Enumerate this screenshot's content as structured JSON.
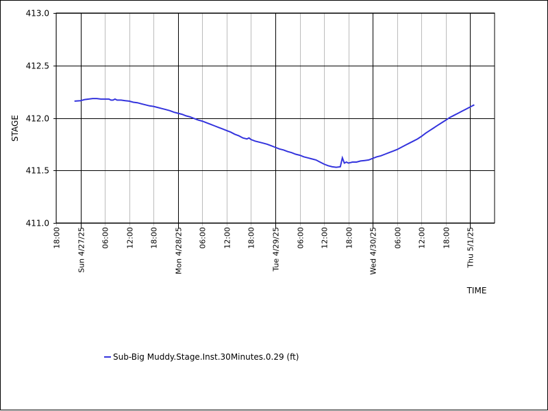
{
  "chart_data": {
    "type": "line",
    "xlabel": "TIME",
    "ylabel": "STAGE",
    "ylim": [
      411.0,
      413.0
    ],
    "y_ticks": [
      "411.0",
      "411.5",
      "412.0",
      "412.5",
      "413.0"
    ],
    "x_range_hours": [
      -6,
      102
    ],
    "x_ticks": [
      {
        "hour": -6,
        "label": "18:00",
        "major": false
      },
      {
        "hour": 0,
        "label": "Sun 4/27/25",
        "major": true
      },
      {
        "hour": 6,
        "label": "06:00",
        "major": false
      },
      {
        "hour": 12,
        "label": "12:00",
        "major": false
      },
      {
        "hour": 18,
        "label": "18:00",
        "major": false
      },
      {
        "hour": 24,
        "label": "Mon 4/28/25",
        "major": true
      },
      {
        "hour": 30,
        "label": "06:00",
        "major": false
      },
      {
        "hour": 36,
        "label": "12:00",
        "major": false
      },
      {
        "hour": 42,
        "label": "18:00",
        "major": false
      },
      {
        "hour": 48,
        "label": "Tue 4/29/25",
        "major": true
      },
      {
        "hour": 54,
        "label": "06:00",
        "major": false
      },
      {
        "hour": 60,
        "label": "12:00",
        "major": false
      },
      {
        "hour": 66,
        "label": "18:00",
        "major": false
      },
      {
        "hour": 72,
        "label": "Wed 4/30/25",
        "major": true
      },
      {
        "hour": 78,
        "label": "06:00",
        "major": false
      },
      {
        "hour": 84,
        "label": "12:00",
        "major": false
      },
      {
        "hour": 90,
        "label": "18:00",
        "major": false
      },
      {
        "hour": 96,
        "label": "Thu 5/1/25",
        "major": true
      }
    ],
    "grid": true,
    "legend_position": "bottom-left",
    "series": [
      {
        "name": "Sub-Big Muddy.Stage.Inst.30Minutes.0.29 (ft)",
        "color": "#3333dd",
        "points": [
          [
            -1.5,
            412.16
          ],
          [
            0,
            412.165
          ],
          [
            1,
            412.175
          ],
          [
            2,
            412.18
          ],
          [
            3,
            412.185
          ],
          [
            4,
            412.185
          ],
          [
            5,
            412.18
          ],
          [
            6,
            412.18
          ],
          [
            7,
            412.18
          ],
          [
            7.5,
            412.17
          ],
          [
            8,
            412.17
          ],
          [
            8.5,
            412.18
          ],
          [
            9,
            412.17
          ],
          [
            10,
            412.17
          ],
          [
            11,
            412.165
          ],
          [
            12,
            412.16
          ],
          [
            13,
            412.15
          ],
          [
            14,
            412.145
          ],
          [
            15,
            412.135
          ],
          [
            16,
            412.125
          ],
          [
            17,
            412.115
          ],
          [
            18,
            412.11
          ],
          [
            19,
            412.1
          ],
          [
            20,
            412.09
          ],
          [
            21,
            412.08
          ],
          [
            22,
            412.07
          ],
          [
            23,
            412.055
          ],
          [
            24,
            412.045
          ],
          [
            25,
            412.035
          ],
          [
            26,
            412.02
          ],
          [
            27,
            412.01
          ],
          [
            28,
            411.995
          ],
          [
            29,
            411.98
          ],
          [
            30,
            411.97
          ],
          [
            31,
            411.955
          ],
          [
            32,
            411.94
          ],
          [
            33,
            411.925
          ],
          [
            34,
            411.91
          ],
          [
            35,
            411.895
          ],
          [
            36,
            411.88
          ],
          [
            37,
            411.865
          ],
          [
            38,
            411.845
          ],
          [
            39,
            411.83
          ],
          [
            40,
            411.81
          ],
          [
            41,
            411.8
          ],
          [
            41.5,
            411.81
          ],
          [
            42,
            411.795
          ],
          [
            43,
            411.78
          ],
          [
            44,
            411.77
          ],
          [
            45,
            411.76
          ],
          [
            46,
            411.75
          ],
          [
            47,
            411.735
          ],
          [
            48,
            411.72
          ],
          [
            49,
            411.705
          ],
          [
            50,
            411.695
          ],
          [
            51,
            411.68
          ],
          [
            52,
            411.67
          ],
          [
            53,
            411.655
          ],
          [
            54,
            411.645
          ],
          [
            55,
            411.63
          ],
          [
            56,
            411.62
          ],
          [
            57,
            411.61
          ],
          [
            58,
            411.6
          ],
          [
            59,
            411.58
          ],
          [
            60,
            411.56
          ],
          [
            61,
            411.545
          ],
          [
            62,
            411.535
          ],
          [
            63,
            411.53
          ],
          [
            64,
            411.535
          ],
          [
            64.5,
            411.62
          ],
          [
            65,
            411.57
          ],
          [
            65.5,
            411.58
          ],
          [
            66,
            411.57
          ],
          [
            67,
            411.58
          ],
          [
            68,
            411.58
          ],
          [
            69,
            411.59
          ],
          [
            70,
            411.595
          ],
          [
            71,
            411.6
          ],
          [
            72,
            411.615
          ],
          [
            73,
            411.63
          ],
          [
            74,
            411.64
          ],
          [
            75,
            411.655
          ],
          [
            76,
            411.67
          ],
          [
            77,
            411.685
          ],
          [
            78,
            411.7
          ],
          [
            79,
            411.72
          ],
          [
            80,
            411.74
          ],
          [
            81,
            411.76
          ],
          [
            82,
            411.78
          ],
          [
            83,
            411.8
          ],
          [
            84,
            411.825
          ],
          [
            85,
            411.855
          ],
          [
            86,
            411.88
          ],
          [
            87,
            411.905
          ],
          [
            88,
            411.93
          ],
          [
            89,
            411.955
          ],
          [
            90,
            411.98
          ],
          [
            91,
            412.005
          ],
          [
            92,
            412.025
          ],
          [
            93,
            412.045
          ],
          [
            94,
            412.065
          ],
          [
            95,
            412.085
          ],
          [
            96,
            412.105
          ],
          [
            97,
            412.125
          ]
        ]
      }
    ]
  }
}
